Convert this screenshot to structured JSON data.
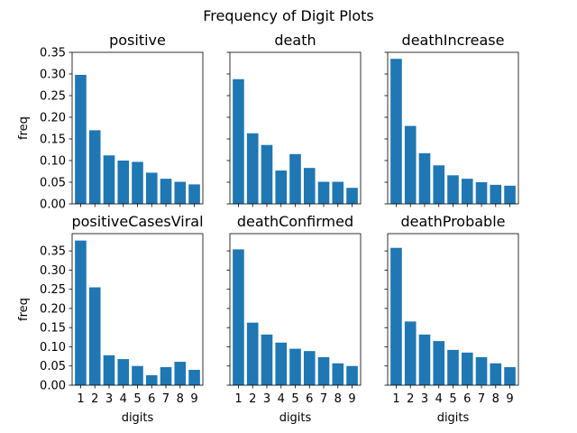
{
  "figure": {
    "title": "Frequency of Digit Plots",
    "bar_color": "#1f77b4"
  },
  "chart_data": [
    {
      "type": "bar",
      "title": "positive",
      "categories": [
        "1",
        "2",
        "3",
        "4",
        "5",
        "6",
        "7",
        "8",
        "9"
      ],
      "values": [
        0.298,
        0.17,
        0.112,
        0.1,
        0.097,
        0.072,
        0.058,
        0.051,
        0.045
      ],
      "xlabel": "",
      "ylabel": "freq",
      "ylim": [
        0,
        0.35
      ],
      "yticks": [
        "0.00",
        "0.05",
        "0.10",
        "0.15",
        "0.20",
        "0.25",
        "0.30",
        "0.35"
      ],
      "show_y_tick_labels": true,
      "show_x_tick_labels": false
    },
    {
      "type": "bar",
      "title": "death",
      "categories": [
        "1",
        "2",
        "3",
        "4",
        "5",
        "6",
        "7",
        "8",
        "9"
      ],
      "values": [
        0.288,
        0.163,
        0.136,
        0.077,
        0.115,
        0.083,
        0.051,
        0.051,
        0.037
      ],
      "xlabel": "",
      "ylabel": "",
      "ylim": [
        0,
        0.35
      ],
      "yticks": [
        "0.00",
        "0.05",
        "0.10",
        "0.15",
        "0.20",
        "0.25",
        "0.30",
        "0.35"
      ],
      "show_y_tick_labels": false,
      "show_x_tick_labels": false
    },
    {
      "type": "bar",
      "title": "deathIncrease",
      "categories": [
        "1",
        "2",
        "3",
        "4",
        "5",
        "6",
        "7",
        "8",
        "9"
      ],
      "values": [
        0.335,
        0.18,
        0.117,
        0.089,
        0.066,
        0.058,
        0.05,
        0.044,
        0.042
      ],
      "xlabel": "",
      "ylabel": "",
      "ylim": [
        0,
        0.35
      ],
      "yticks": [
        "0.00",
        "0.05",
        "0.10",
        "0.15",
        "0.20",
        "0.25",
        "0.30",
        "0.35"
      ],
      "show_y_tick_labels": false,
      "show_x_tick_labels": false
    },
    {
      "type": "bar",
      "title": "positiveCasesViral",
      "categories": [
        "1",
        "2",
        "3",
        "4",
        "5",
        "6",
        "7",
        "8",
        "9"
      ],
      "values": [
        0.377,
        0.255,
        0.078,
        0.068,
        0.05,
        0.026,
        0.047,
        0.061,
        0.04
      ],
      "xlabel": "digits",
      "ylabel": "freq",
      "ylim": [
        0,
        0.395
      ],
      "yticks": [
        "0.00",
        "0.05",
        "0.10",
        "0.15",
        "0.20",
        "0.25",
        "0.30",
        "0.35"
      ],
      "show_y_tick_labels": true,
      "show_x_tick_labels": true
    },
    {
      "type": "bar",
      "title": "deathConfirmed",
      "categories": [
        "1",
        "2",
        "3",
        "4",
        "5",
        "6",
        "7",
        "8",
        "9"
      ],
      "values": [
        0.354,
        0.163,
        0.132,
        0.111,
        0.095,
        0.089,
        0.073,
        0.057,
        0.05
      ],
      "xlabel": "digits",
      "ylabel": "",
      "ylim": [
        0,
        0.395
      ],
      "yticks": [
        "0.00",
        "0.05",
        "0.10",
        "0.15",
        "0.20",
        "0.25",
        "0.30",
        "0.35"
      ],
      "show_y_tick_labels": false,
      "show_x_tick_labels": true
    },
    {
      "type": "bar",
      "title": "deathProbable",
      "categories": [
        "1",
        "2",
        "3",
        "4",
        "5",
        "6",
        "7",
        "8",
        "9"
      ],
      "values": [
        0.358,
        0.166,
        0.132,
        0.115,
        0.092,
        0.085,
        0.073,
        0.057,
        0.047
      ],
      "xlabel": "digits",
      "ylabel": "",
      "ylim": [
        0,
        0.395
      ],
      "yticks": [
        "0.00",
        "0.05",
        "0.10",
        "0.15",
        "0.20",
        "0.25",
        "0.30",
        "0.35"
      ],
      "show_y_tick_labels": false,
      "show_x_tick_labels": true
    }
  ]
}
